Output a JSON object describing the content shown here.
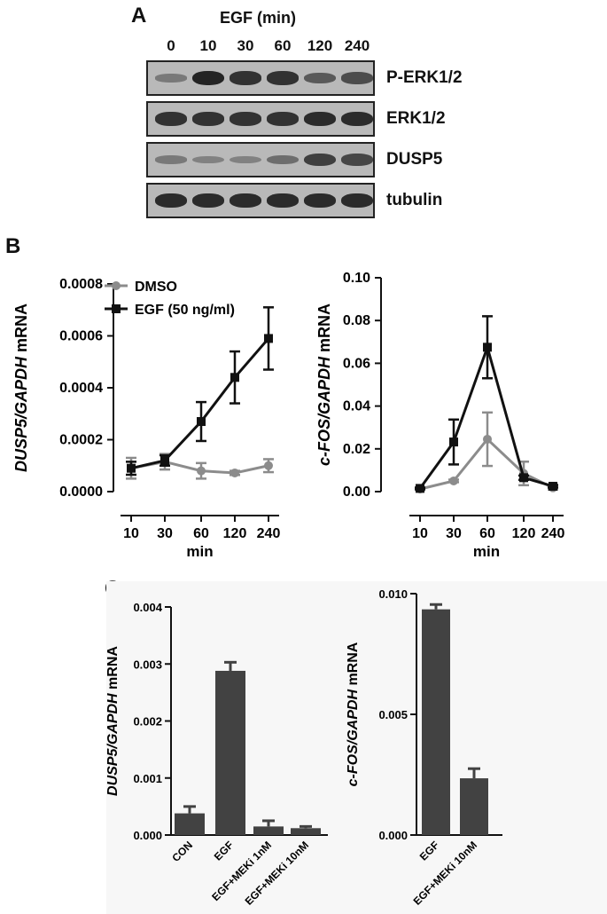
{
  "panel_labels": {
    "a": "A",
    "b": "B",
    "c": "C"
  },
  "blot": {
    "header": "EGF (min)",
    "lanes": [
      "0",
      "10",
      "30",
      "60",
      "120",
      "240"
    ],
    "rows": [
      {
        "label": "P-ERK1/2",
        "intensities": [
          0.3,
          0.95,
          0.85,
          0.85,
          0.55,
          0.65
        ]
      },
      {
        "label": "ERK1/2",
        "intensities": [
          0.85,
          0.85,
          0.85,
          0.85,
          0.9,
          0.9
        ]
      },
      {
        "label": "DUSP5",
        "intensities": [
          0.3,
          0.25,
          0.25,
          0.4,
          0.75,
          0.7
        ]
      },
      {
        "label": "tubulin",
        "intensities": [
          0.9,
          0.9,
          0.9,
          0.9,
          0.9,
          0.9
        ]
      }
    ]
  },
  "chart_data": [
    {
      "type": "line",
      "ylabel_italic": "DUSP5/GAPDH",
      "ylabel_rest": " mRNA",
      "xlabel": "min",
      "categories": [
        "10",
        "30",
        "60",
        "120",
        "240"
      ],
      "ylim": [
        0,
        0.0008
      ],
      "yticks": [
        "0.0000",
        "0.0002",
        "0.0004",
        "0.0006",
        "0.0008"
      ],
      "series": [
        {
          "name": "DMSO",
          "color": "#8c8c8c",
          "values": [
            9e-05,
            0.000115,
            8e-05,
            7.2e-05,
            0.0001
          ],
          "errors": [
            4e-05,
            3e-05,
            3e-05,
            8e-06,
            2.5e-05
          ]
        },
        {
          "name": "EGF (50 ng/ml)",
          "color": "#111111",
          "values": [
            9e-05,
            0.00012,
            0.00027,
            0.00044,
            0.00059
          ],
          "errors": [
            2.5e-05,
            2e-05,
            7.5e-05,
            0.0001,
            0.00012
          ]
        }
      ]
    },
    {
      "type": "line",
      "ylabel_italic": "c-FOS/GAPDH",
      "ylabel_rest": " mRNA",
      "xlabel": "min",
      "categories": [
        "10",
        "30",
        "60",
        "120",
        "240"
      ],
      "ylim": [
        0,
        0.1
      ],
      "yticks": [
        "0.00",
        "0.02",
        "0.04",
        "0.06",
        "0.08",
        "0.10"
      ],
      "series": [
        {
          "name": "DMSO",
          "color": "#8c8c8c",
          "values": [
            0.0012,
            0.005,
            0.0245,
            0.0085,
            0.0018
          ],
          "errors": [
            0.0004,
            0.0006,
            0.0125,
            0.0055,
            0.0008
          ]
        },
        {
          "name": "EGF (50 ng/ml)",
          "color": "#111111",
          "values": [
            0.0015,
            0.0232,
            0.0675,
            0.0065,
            0.0025
          ],
          "errors": [
            0.0004,
            0.0105,
            0.0145,
            0.001,
            0.0006
          ]
        }
      ]
    },
    {
      "type": "bar",
      "ylabel_italic": "DUSP5/GAPDH",
      "ylabel_rest": " mRNA",
      "categories": [
        "CON",
        "EGF",
        "EGF+MEKi 1nM",
        "EGF+MEKi 10nM"
      ],
      "values": [
        0.00038,
        0.00288,
        0.00015,
        0.00012
      ],
      "errors": [
        0.00012,
        0.00015,
        0.0001,
        3e-05
      ],
      "ylim": [
        0,
        0.004
      ],
      "yticks": [
        "0.000",
        "0.001",
        "0.002",
        "0.003",
        "0.004"
      ],
      "color": "#424242"
    },
    {
      "type": "bar",
      "ylabel_italic": "c-FOS/GAPDH",
      "ylabel_rest": " mRNA",
      "categories": [
        "EGF",
        "EGF+MEKi 10nM"
      ],
      "values": [
        0.00935,
        0.00235
      ],
      "errors": [
        0.0002,
        0.0004
      ],
      "ylim": [
        0,
        0.01
      ],
      "yticks": [
        "0.000",
        "0.005",
        "0.010"
      ],
      "color": "#424242"
    }
  ]
}
